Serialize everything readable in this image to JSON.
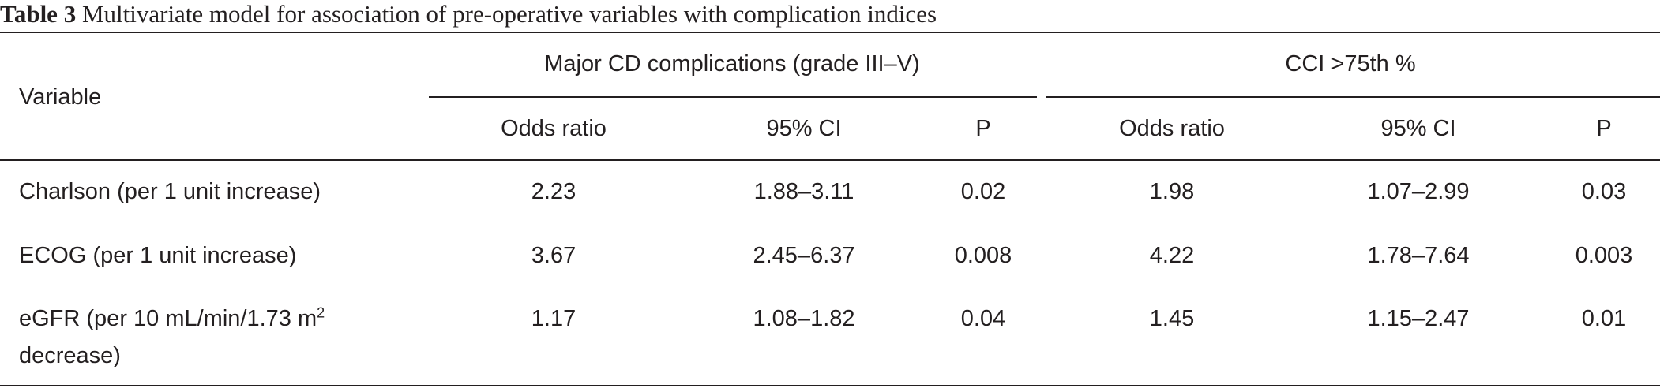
{
  "caption": {
    "label": "Table 3",
    "text": "Multivariate model for association of pre-operative variables with complication indices"
  },
  "header": {
    "variable": "Variable",
    "group_a": "Major CD complications (grade III–V)",
    "group_b": "CCI >75th %",
    "sub": {
      "odds_ratio": "Odds ratio",
      "ci": "95% CI",
      "p": "P"
    }
  },
  "rows": [
    {
      "variable": "Charlson (per 1 unit increase)",
      "a_or": "2.23",
      "a_ci": "1.88–3.11",
      "a_p": "0.02",
      "b_or": "1.98",
      "b_ci": "1.07–2.99",
      "b_p": "0.03"
    },
    {
      "variable": "ECOG (per 1 unit increase)",
      "a_or": "3.67",
      "a_ci": "2.45–6.37",
      "a_p": "0.008",
      "b_or": "4.22",
      "b_ci": "1.78–7.64",
      "b_p": "0.003"
    },
    {
      "variable_line1": "eGFR (per 10 mL/min/1.73 m",
      "variable_sup": "2",
      "variable_line2": "decrease)",
      "a_or": "1.17",
      "a_ci": "1.08–1.82",
      "a_p": "0.04",
      "b_or": "1.45",
      "b_ci": "1.15–2.47",
      "b_p": "0.01"
    }
  ]
}
